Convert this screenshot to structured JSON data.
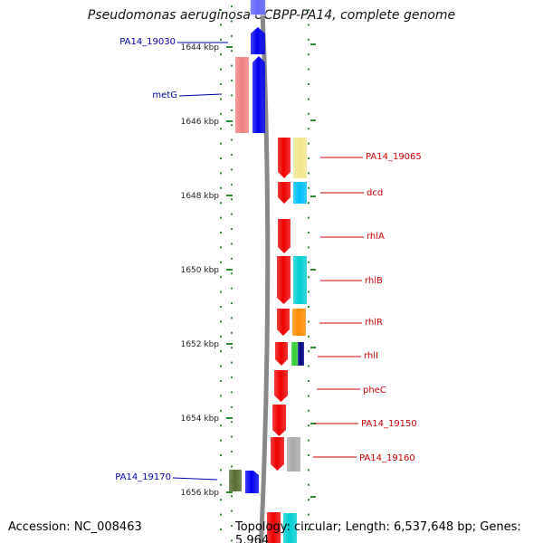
{
  "title": "Pseudomonas aeruginosa UCBPP-PA14, complete genome",
  "footer": {
    "accession": "Accession: NC_008463",
    "summary": "Topology: circular; Length: 6,537,648 bp; Genes: 5,964"
  },
  "colors": {
    "forward_strand": "#0000ee",
    "reverse_strand": "#ee0000",
    "backbone": "#888888",
    "tick": "#2e8b2e",
    "forward_label": "#0000aa",
    "reverse_label": "#cc0000"
  },
  "scale": {
    "unit": "kbp",
    "ticks": [
      {
        "label": "1644 kbp",
        "value": 1644
      },
      {
        "label": "1646 kbp",
        "value": 1646
      },
      {
        "label": "1648 kbp",
        "value": 1648
      },
      {
        "label": "1650 kbp",
        "value": 1650
      },
      {
        "label": "1652 kbp",
        "value": 1652
      },
      {
        "label": "1654 kbp",
        "value": 1654
      },
      {
        "label": "1656 kbp",
        "value": 1656
      }
    ]
  },
  "features": [
    {
      "label": "PA14_19030",
      "strand": "forward",
      "color": "#0000ee",
      "role": "gene"
    },
    {
      "label": "metG",
      "strand": "forward",
      "color": "#0000ee",
      "role": "gene"
    },
    {
      "label": "metG",
      "strand": "forward",
      "color": "#f08080",
      "role": "cog"
    },
    {
      "label": "PA14_19065",
      "strand": "reverse",
      "color": "#ee0000",
      "role": "gene"
    },
    {
      "label": "PA14_19065",
      "strand": "reverse",
      "color": "#f0e68c",
      "role": "cog"
    },
    {
      "label": "dcd",
      "strand": "reverse",
      "color": "#ee0000",
      "role": "gene"
    },
    {
      "label": "dcd",
      "strand": "reverse",
      "color": "#00bfff",
      "role": "cog"
    },
    {
      "label": "rhlA",
      "strand": "reverse",
      "color": "#ee0000",
      "role": "gene"
    },
    {
      "label": "rhlB",
      "strand": "reverse",
      "color": "#ee0000",
      "role": "gene"
    },
    {
      "label": "rhlB",
      "strand": "reverse",
      "color": "#00ced1",
      "role": "cog"
    },
    {
      "label": "rhlR",
      "strand": "reverse",
      "color": "#ee0000",
      "role": "gene"
    },
    {
      "label": "rhlR",
      "strand": "reverse",
      "color": "#ff8c00",
      "role": "cog"
    },
    {
      "label": "rhlI",
      "strand": "reverse",
      "color": "#ee0000",
      "role": "gene"
    },
    {
      "label": "rhlI",
      "strand": "reverse",
      "color": "#32cd32",
      "role": "cog"
    },
    {
      "label": "rhlI",
      "strand": "reverse",
      "color": "#000080",
      "role": "cog"
    },
    {
      "label": "pheC",
      "strand": "reverse",
      "color": "#ee0000",
      "role": "gene"
    },
    {
      "label": "PA14_19150",
      "strand": "reverse",
      "color": "#ee0000",
      "role": "gene"
    },
    {
      "label": "PA14_19160",
      "strand": "reverse",
      "color": "#ee0000",
      "role": "gene"
    },
    {
      "label": "PA14_19160",
      "strand": "reverse",
      "color": "#a9a9a9",
      "role": "cog"
    },
    {
      "label": "PA14_19170",
      "strand": "forward",
      "color": "#556b2f",
      "role": "cog"
    },
    {
      "label": "PA14_19170",
      "strand": "forward",
      "color": "#0000ee",
      "role": "gene"
    }
  ],
  "callouts": [
    {
      "text": "PA14_19030",
      "strand": "forward"
    },
    {
      "text": "metG",
      "strand": "forward"
    },
    {
      "text": "PA14_19065",
      "strand": "reverse"
    },
    {
      "text": "dcd",
      "strand": "reverse"
    },
    {
      "text": "rhlA",
      "strand": "reverse"
    },
    {
      "text": "rhlB",
      "strand": "reverse"
    },
    {
      "text": "rhlR",
      "strand": "reverse"
    },
    {
      "text": "rhlI",
      "strand": "reverse"
    },
    {
      "text": "pheC",
      "strand": "reverse"
    },
    {
      "text": "PA14_19150",
      "strand": "reverse"
    },
    {
      "text": "PA14_19160",
      "strand": "reverse"
    },
    {
      "text": "PA14_19170",
      "strand": "forward"
    }
  ]
}
